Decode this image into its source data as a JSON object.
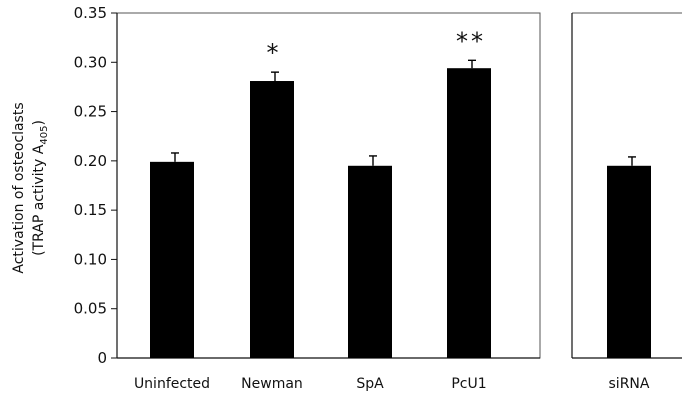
{
  "chart_data": [
    {
      "type": "bar",
      "categories": [
        "Uninfected",
        "Newman",
        "SpA",
        "PcU1"
      ],
      "values": [
        0.199,
        0.281,
        0.195,
        0.294
      ],
      "error": [
        0.009,
        0.009,
        0.01,
        0.008
      ],
      "significance": [
        "",
        "*",
        "",
        "**"
      ],
      "ylabel_line1": "Activation of osteoclasts",
      "ylabel_line2": "(TRAP activity A",
      "ylabel_subscript": "405",
      "ylabel_close": ")",
      "ylim": [
        0,
        0.35
      ],
      "yticks": [
        "0",
        "0.05",
        "0.10",
        "0.15",
        "0.20",
        "0.25",
        "0.30",
        "0.35"
      ],
      "bar_color": "#000000",
      "grid": false
    },
    {
      "type": "bar",
      "categories": [
        "siRNA"
      ],
      "values": [
        0.195
      ],
      "error": [
        0.009
      ],
      "ylim": [
        0,
        0.35
      ],
      "bar_color": "#000000",
      "grid": false
    }
  ]
}
